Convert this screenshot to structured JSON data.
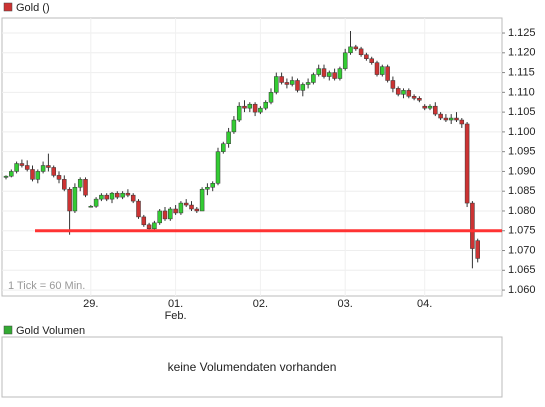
{
  "chart_data": {
    "type": "candlestick",
    "series": [
      {
        "name": "Gold ()",
        "color": "#cc3333",
        "open": [
          1.0885,
          1.0888,
          1.09,
          1.092,
          1.0915,
          1.0905,
          1.088,
          1.09,
          1.0915,
          1.091,
          1.089,
          1.088,
          1.0855,
          1.08,
          1.086,
          1.088,
          1.0812,
          1.0812,
          1.083,
          1.084,
          1.083,
          1.0845,
          1.0835,
          1.0845,
          1.084,
          1.0825,
          1.0785,
          1.0765,
          1.0755,
          1.077,
          1.08,
          1.078,
          1.0805,
          1.0795,
          1.082,
          1.0815,
          1.0805,
          1.08,
          1.0855,
          1.086,
          1.087,
          1.095,
          1.097,
          1.1,
          1.103,
          1.1065,
          1.106,
          1.107,
          1.105,
          1.106,
          1.1075,
          1.11,
          1.114,
          1.1125,
          1.112,
          1.113,
          1.1105,
          1.112,
          1.1125,
          1.1145,
          1.116,
          1.114,
          1.115,
          1.1135,
          1.116,
          1.12,
          1.1215,
          1.121,
          1.1195,
          1.1185,
          1.1175,
          1.1145,
          1.1165,
          1.113,
          1.111,
          1.1095,
          1.1105,
          1.109,
          1.1085,
          1.1065,
          1.106,
          1.1065,
          1.1045,
          1.1035,
          1.103,
          1.1035,
          1.103,
          1.102,
          1.082,
          1.0725
        ],
        "high": [
          1.089,
          1.0905,
          1.0925,
          1.093,
          1.0928,
          1.0915,
          1.0905,
          1.0925,
          1.0945,
          1.0915,
          1.09,
          1.089,
          1.086,
          1.087,
          1.0885,
          1.0885,
          1.0815,
          1.0835,
          1.0845,
          1.0845,
          1.0848,
          1.085,
          1.085,
          1.0855,
          1.0845,
          1.083,
          1.079,
          1.077,
          1.0775,
          1.0805,
          1.081,
          1.081,
          1.0815,
          1.0825,
          1.083,
          1.0825,
          1.081,
          1.086,
          1.087,
          1.0875,
          1.096,
          1.0975,
          1.101,
          1.104,
          1.1075,
          1.108,
          1.1075,
          1.1075,
          1.1065,
          1.108,
          1.111,
          1.115,
          1.115,
          1.1135,
          1.114,
          1.1135,
          1.1125,
          1.1135,
          1.115,
          1.117,
          1.117,
          1.1155,
          1.116,
          1.1165,
          1.121,
          1.1255,
          1.122,
          1.1215,
          1.12,
          1.119,
          1.118,
          1.117,
          1.117,
          1.114,
          1.1115,
          1.111,
          1.111,
          1.1095,
          1.109,
          1.107,
          1.107,
          1.1075,
          1.105,
          1.1045,
          1.1045,
          1.105,
          1.1035,
          1.1025,
          1.0825,
          1.073
        ],
        "low": [
          1.088,
          1.0885,
          1.0895,
          1.091,
          1.09,
          1.0875,
          1.087,
          1.0895,
          1.09,
          1.0885,
          1.087,
          1.085,
          1.074,
          1.0795,
          1.085,
          1.0835,
          1.081,
          1.0808,
          1.0825,
          1.0825,
          1.082,
          1.083,
          1.083,
          1.0835,
          1.082,
          1.078,
          1.076,
          1.075,
          1.075,
          1.0765,
          1.0775,
          1.0775,
          1.079,
          1.079,
          1.081,
          1.08,
          1.0795,
          1.08,
          1.084,
          1.085,
          1.0865,
          1.0945,
          1.096,
          1.0995,
          1.1025,
          1.105,
          1.105,
          1.104,
          1.1045,
          1.1055,
          1.107,
          1.1095,
          1.112,
          1.111,
          1.1115,
          1.11,
          1.109,
          1.111,
          1.112,
          1.114,
          1.1135,
          1.113,
          1.113,
          1.113,
          1.1155,
          1.1195,
          1.1205,
          1.119,
          1.118,
          1.117,
          1.114,
          1.114,
          1.1125,
          1.11,
          1.109,
          1.1085,
          1.1085,
          1.108,
          1.1075,
          1.1055,
          1.1055,
          1.104,
          1.103,
          1.1025,
          1.102,
          1.1025,
          1.101,
          1.081,
          1.0655,
          1.067
        ],
        "close": [
          1.0888,
          1.09,
          1.092,
          1.0915,
          1.0905,
          1.088,
          1.09,
          1.0915,
          1.091,
          1.089,
          1.088,
          1.0855,
          1.08,
          1.086,
          1.088,
          1.084,
          1.0812,
          1.083,
          1.084,
          1.083,
          1.0845,
          1.0835,
          1.0845,
          1.084,
          1.0825,
          1.0785,
          1.0765,
          1.0755,
          1.077,
          1.08,
          1.078,
          1.0805,
          1.0795,
          1.082,
          1.0815,
          1.0805,
          1.08,
          1.0855,
          1.086,
          1.087,
          1.095,
          1.097,
          1.1,
          1.103,
          1.1065,
          1.106,
          1.107,
          1.105,
          1.106,
          1.1075,
          1.11,
          1.114,
          1.1125,
          1.112,
          1.113,
          1.1105,
          1.112,
          1.1125,
          1.1145,
          1.116,
          1.114,
          1.115,
          1.1135,
          1.116,
          1.12,
          1.1215,
          1.121,
          1.1195,
          1.1185,
          1.1175,
          1.1145,
          1.1165,
          1.113,
          1.111,
          1.1095,
          1.1105,
          1.109,
          1.1085,
          1.108,
          1.106,
          1.1065,
          1.1045,
          1.1035,
          1.103,
          1.1035,
          1.103,
          1.102,
          1.082,
          1.0705,
          1.068
        ]
      }
    ],
    "categories": [
      null,
      null,
      null,
      null,
      null,
      null,
      null,
      null,
      null,
      null,
      null,
      null,
      null,
      null,
      null,
      null,
      "29.",
      null,
      null,
      null,
      null,
      null,
      null,
      null,
      null,
      null,
      null,
      null,
      null,
      null,
      null,
      null,
      "01.",
      null,
      null,
      null,
      null,
      null,
      null,
      null,
      null,
      null,
      null,
      null,
      null,
      null,
      null,
      null,
      "02.",
      null,
      null,
      null,
      null,
      null,
      null,
      null,
      null,
      null,
      null,
      null,
      null,
      null,
      null,
      null,
      "03.",
      null,
      null,
      null,
      null,
      null,
      null,
      null,
      null,
      null,
      null,
      null,
      null,
      null,
      null,
      "04.",
      null,
      null,
      null,
      null,
      null,
      null,
      null,
      null,
      null,
      null
    ],
    "month_label": "Feb.",
    "up_color": "#33cc33",
    "down_color": "#cc3333",
    "reference_line": 1.075,
    "reference_color": "#ff3333",
    "annotation": "1 Tick = 60 Min.",
    "ylim": [
      1.0585,
      1.1288
    ],
    "yticks": [
      {
        "value": 1.06,
        "label": "1.060"
      },
      {
        "value": 1.065,
        "label": "1.065"
      },
      {
        "value": 1.07,
        "label": "1.070"
      },
      {
        "value": 1.075,
        "label": "1.075"
      },
      {
        "value": 1.08,
        "label": "1.080"
      },
      {
        "value": 1.085,
        "label": "1.085"
      },
      {
        "value": 1.09,
        "label": "1.090"
      },
      {
        "value": 1.095,
        "label": "1.095"
      },
      {
        "value": 1.1,
        "label": "1.100"
      },
      {
        "value": 1.105,
        "label": "1.105"
      },
      {
        "value": 1.11,
        "label": "1.110"
      },
      {
        "value": 1.115,
        "label": "1.115"
      },
      {
        "value": 1.12,
        "label": "1.120"
      },
      {
        "value": 1.125,
        "label": "1.125"
      }
    ],
    "grid": true
  },
  "volume_panel": {
    "legend": "Gold Volumen",
    "color": "#33aa33",
    "message": "keine Volumendaten vorhanden"
  }
}
